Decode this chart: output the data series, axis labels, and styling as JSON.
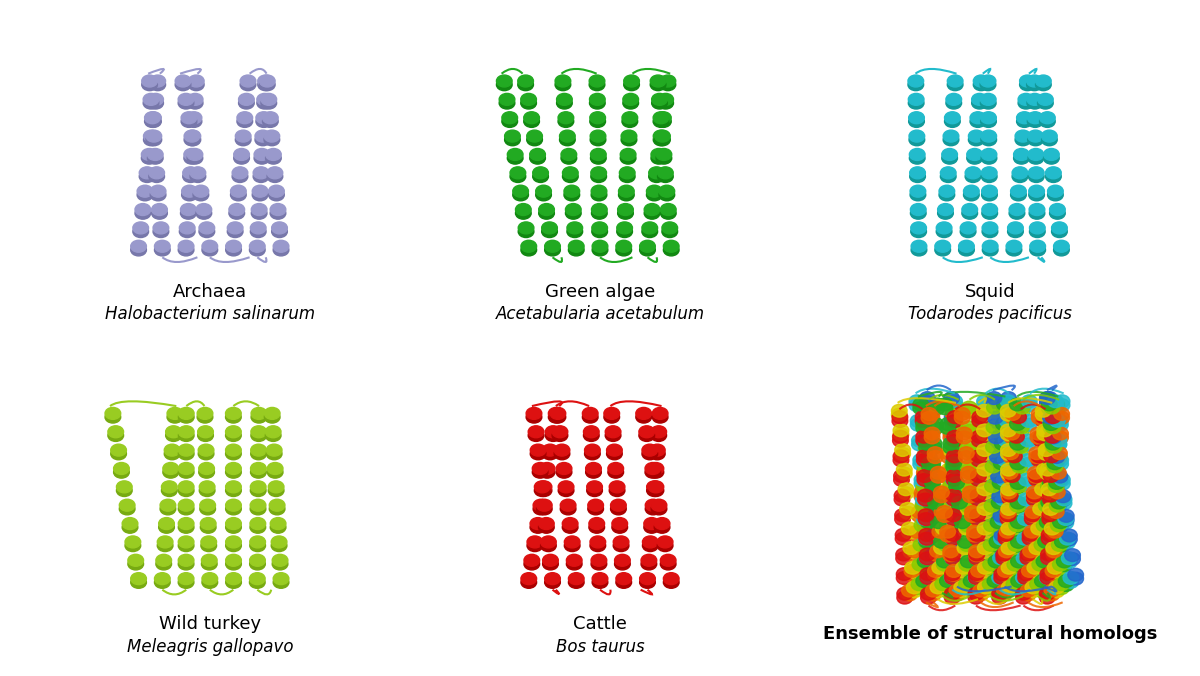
{
  "panels": [
    {
      "row": 0,
      "col": 0,
      "common_name": "Archaea",
      "species": "Halobacterium salinarum",
      "color": "#9999cc",
      "color_dark": "#7777aa",
      "style": "light_purple"
    },
    {
      "row": 0,
      "col": 1,
      "common_name": "Green algae",
      "species": "Acetabularia acetabulum",
      "color": "#22aa22",
      "color_dark": "#118811",
      "style": "green"
    },
    {
      "row": 0,
      "col": 2,
      "common_name": "Squid",
      "species": "Todarodes pacificus",
      "color": "#22bbcc",
      "color_dark": "#119999",
      "style": "cyan"
    },
    {
      "row": 1,
      "col": 0,
      "common_name": "Wild turkey",
      "species": "Meleagris gallopavo",
      "color": "#99cc22",
      "color_dark": "#77aa11",
      "style": "yellow_green"
    },
    {
      "row": 1,
      "col": 1,
      "common_name": "Cattle",
      "species": "Bos taurus",
      "color": "#dd1111",
      "color_dark": "#aa0000",
      "style": "red"
    },
    {
      "row": 1,
      "col": 2,
      "common_name": "Ensemble of structural homologs",
      "species": "",
      "color": "multi",
      "color_dark": "multi",
      "style": "ensemble",
      "ensemble_colors": [
        "#dd1111",
        "#ee6600",
        "#ddcc00",
        "#88cc00",
        "#22aa22",
        "#22bbcc",
        "#2266cc",
        "#0000cc"
      ]
    }
  ],
  "background_color": "#ffffff",
  "label_fontsize": 13,
  "species_fontsize": 12,
  "ensemble_label_fontweight": "bold"
}
